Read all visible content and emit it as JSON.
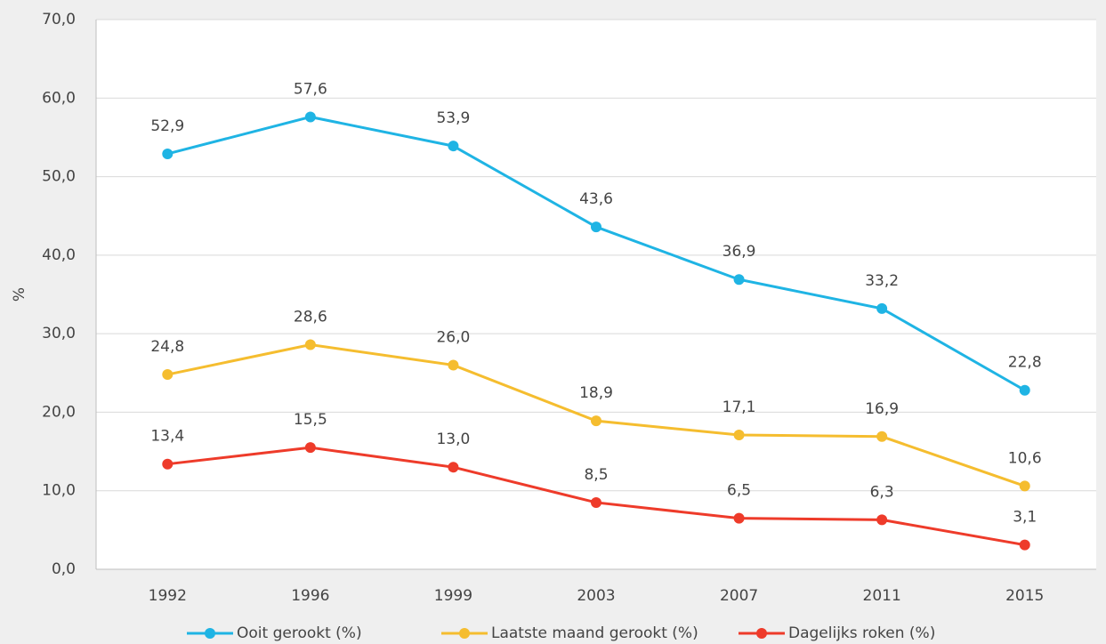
{
  "chart_data": {
    "type": "line",
    "y_label": "%",
    "categories": [
      "1992",
      "1996",
      "1999",
      "2003",
      "2007",
      "2011",
      "2015"
    ],
    "series": [
      {
        "name": "Ooit gerookt (%)",
        "color": "#1fb4e4",
        "values": [
          52.9,
          57.6,
          53.9,
          43.6,
          36.9,
          33.2,
          22.8
        ],
        "value_labels": [
          "52,9",
          "57,6",
          "53,9",
          "43,6",
          "36,9",
          "33,2",
          "22,8"
        ]
      },
      {
        "name": "Laatste maand gerookt (%)",
        "color": "#f5bd2f",
        "values": [
          24.8,
          28.6,
          26.0,
          18.9,
          17.1,
          16.9,
          10.6
        ],
        "value_labels": [
          "24,8",
          "28,6",
          "26,0",
          "18,9",
          "17,1",
          "16,9",
          "10,6"
        ]
      },
      {
        "name": "Dagelijks roken (%)",
        "color": "#ee3b2a",
        "values": [
          13.4,
          15.5,
          13.0,
          8.5,
          6.5,
          6.3,
          3.1
        ],
        "value_labels": [
          "13,4",
          "15,5",
          "13,0",
          "8,5",
          "6,5",
          "6,3",
          "3,1"
        ]
      }
    ],
    "ylim": [
      0,
      70
    ],
    "yticks": [
      {
        "value": 0,
        "label": "0,0"
      },
      {
        "value": 10,
        "label": "10,0"
      },
      {
        "value": 20,
        "label": "20,0"
      },
      {
        "value": 30,
        "label": "30,0"
      },
      {
        "value": 40,
        "label": "40,0"
      },
      {
        "value": 50,
        "label": "50,0"
      },
      {
        "value": 60,
        "label": "60,0"
      },
      {
        "value": 70,
        "label": "70,0"
      }
    ],
    "grid": true,
    "legend": "bottom"
  }
}
